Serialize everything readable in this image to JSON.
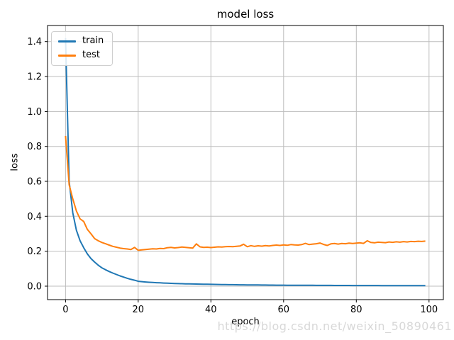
{
  "figure": {
    "title": "model loss",
    "xlabel": "epoch",
    "ylabel": "loss",
    "watermark": "https://blog.csdn.net/weixin_50890461"
  },
  "legend": {
    "position": "upper left",
    "items": [
      {
        "label": "train",
        "color": "#1f77b4"
      },
      {
        "label": "test",
        "color": "#ff7f0e"
      }
    ]
  },
  "colors": {
    "background": "#ffffff",
    "grid": "#bdbdbd",
    "spine": "#000000",
    "tick_text": "#000000",
    "watermark": "#d8d8d8",
    "train": "#1f77b4",
    "test": "#ff7f0e"
  },
  "chart_data": {
    "type": "line",
    "title": "model loss",
    "xlabel": "epoch",
    "ylabel": "loss",
    "grid": true,
    "legend_position": "upper left",
    "xlim": [
      -4.95,
      103.95
    ],
    "ylim": [
      -0.077,
      1.492
    ],
    "xticks": [
      0,
      20,
      40,
      60,
      80,
      100
    ],
    "xtick_labels": [
      "0",
      "20",
      "40",
      "60",
      "80",
      "100"
    ],
    "yticks": [
      0.0,
      0.2,
      0.4,
      0.6,
      0.8,
      1.0,
      1.2,
      1.4
    ],
    "ytick_labels": [
      "0.0",
      "0.2",
      "0.4",
      "0.6",
      "0.8",
      "1.0",
      "1.2",
      "1.4"
    ],
    "x": [
      0,
      1,
      2,
      3,
      4,
      5,
      6,
      7,
      8,
      9,
      10,
      11,
      12,
      13,
      14,
      15,
      16,
      17,
      18,
      19,
      20,
      21,
      22,
      23,
      24,
      25,
      26,
      27,
      28,
      29,
      30,
      31,
      32,
      33,
      34,
      35,
      36,
      37,
      38,
      39,
      40,
      41,
      42,
      43,
      44,
      45,
      46,
      47,
      48,
      49,
      50,
      51,
      52,
      53,
      54,
      55,
      56,
      57,
      58,
      59,
      60,
      61,
      62,
      63,
      64,
      65,
      66,
      67,
      68,
      69,
      70,
      71,
      72,
      73,
      74,
      75,
      76,
      77,
      78,
      79,
      80,
      81,
      82,
      83,
      84,
      85,
      86,
      87,
      88,
      89,
      90,
      91,
      92,
      93,
      94,
      95,
      96,
      97,
      98,
      99
    ],
    "series": [
      {
        "name": "train",
        "color": "#1f77b4",
        "values": [
          1.42,
          0.6,
          0.42,
          0.32,
          0.26,
          0.22,
          0.185,
          0.158,
          0.138,
          0.12,
          0.105,
          0.094,
          0.084,
          0.075,
          0.067,
          0.059,
          0.052,
          0.045,
          0.039,
          0.034,
          0.028,
          0.026,
          0.024,
          0.0225,
          0.021,
          0.02,
          0.019,
          0.018,
          0.017,
          0.0162,
          0.0155,
          0.0148,
          0.0142,
          0.0136,
          0.013,
          0.0125,
          0.012,
          0.0116,
          0.0112,
          0.0108,
          0.0104,
          0.01,
          0.0097,
          0.0093,
          0.009,
          0.0087,
          0.0084,
          0.0081,
          0.0078,
          0.0076,
          0.0074,
          0.0072,
          0.007,
          0.0068,
          0.0066,
          0.0064,
          0.0062,
          0.0061,
          0.0059,
          0.0058,
          0.0056,
          0.0055,
          0.0054,
          0.0052,
          0.0051,
          0.005,
          0.0049,
          0.0048,
          0.0047,
          0.0046,
          0.0045,
          0.0044,
          0.0043,
          0.0043,
          0.0042,
          0.0041,
          0.004,
          0.004,
          0.0039,
          0.0038,
          0.0038,
          0.0037,
          0.0037,
          0.0036,
          0.0036,
          0.0035,
          0.0035,
          0.0034,
          0.0034,
          0.0033,
          0.0033,
          0.0032,
          0.0032,
          0.0031,
          0.0031,
          0.003,
          0.003,
          0.0029,
          0.0029,
          0.0029
        ]
      },
      {
        "name": "test",
        "color": "#ff7f0e",
        "values": [
          0.86,
          0.58,
          0.5,
          0.43,
          0.385,
          0.37,
          0.325,
          0.3,
          0.272,
          0.26,
          0.25,
          0.243,
          0.235,
          0.228,
          0.223,
          0.218,
          0.215,
          0.213,
          0.21,
          0.222,
          0.205,
          0.208,
          0.21,
          0.212,
          0.214,
          0.213,
          0.216,
          0.215,
          0.22,
          0.222,
          0.219,
          0.221,
          0.224,
          0.222,
          0.22,
          0.218,
          0.242,
          0.225,
          0.222,
          0.223,
          0.221,
          0.223,
          0.225,
          0.224,
          0.226,
          0.227,
          0.226,
          0.228,
          0.23,
          0.24,
          0.226,
          0.232,
          0.228,
          0.231,
          0.229,
          0.232,
          0.23,
          0.233,
          0.235,
          0.233,
          0.236,
          0.234,
          0.238,
          0.236,
          0.235,
          0.238,
          0.245,
          0.238,
          0.241,
          0.243,
          0.247,
          0.239,
          0.233,
          0.242,
          0.244,
          0.241,
          0.244,
          0.243,
          0.246,
          0.244,
          0.246,
          0.248,
          0.245,
          0.26,
          0.25,
          0.248,
          0.252,
          0.25,
          0.249,
          0.253,
          0.251,
          0.254,
          0.252,
          0.255,
          0.253,
          0.256,
          0.255,
          0.257,
          0.256,
          0.258
        ]
      }
    ]
  }
}
